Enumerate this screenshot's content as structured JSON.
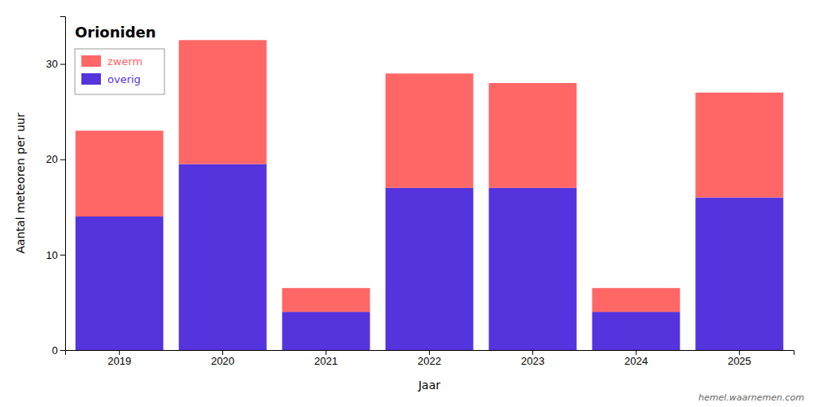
{
  "chart_data": {
    "type": "bar",
    "stacked": true,
    "title": "Orioniden",
    "x_label": "Jaar",
    "y_label": "Aantal meteoren per uur",
    "categories": [
      "2019",
      "2020",
      "2021",
      "2022",
      "2023",
      "2024",
      "2025"
    ],
    "series": [
      {
        "name": "overig",
        "color": "#5533DD",
        "values": [
          14,
          19.5,
          4,
          17,
          17,
          4,
          16
        ]
      },
      {
        "name": "zwerm",
        "color": "#FF6666",
        "values": [
          9,
          13,
          2.5,
          12,
          11,
          2.5,
          11
        ]
      }
    ],
    "ylim": [
      0,
      35
    ],
    "yticks": [
      0,
      10,
      20,
      30
    ],
    "grid": false,
    "legend": "upper left",
    "annotations": [
      "hemel.waarnemen.com"
    ]
  }
}
